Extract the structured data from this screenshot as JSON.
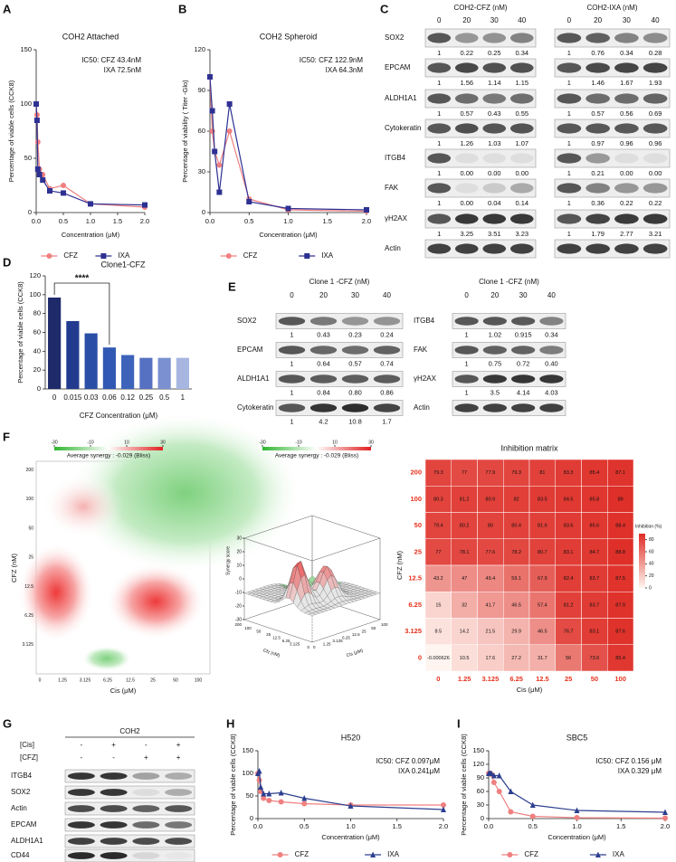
{
  "panels": [
    "A",
    "B",
    "C",
    "D",
    "E",
    "F",
    "G",
    "H",
    "I"
  ],
  "chart_data": [
    {
      "type": "line",
      "title": "COH2 Attached",
      "annotations": [
        "IC50: CFZ 43.4nM",
        "IXA 72.5nM"
      ],
      "x_label": "Concentration (μM)",
      "y_label": "Percentage of viable cells (CCK8)",
      "xlim": [
        0,
        2
      ],
      "xticks": [
        {
          "value": 0,
          "label": "0.0"
        },
        0.5,
        {
          "value": 1,
          "label": "1.0"
        },
        1.5,
        {
          "value": 2,
          "label": "2.0"
        }
      ],
      "ylim": [
        0,
        150
      ],
      "yticks": [
        0,
        50,
        100,
        150
      ],
      "legend": "bottom",
      "x": [
        0,
        0.015,
        0.03,
        0.06,
        0.12,
        0.25,
        0.5,
        1,
        2
      ],
      "series": [
        {
          "name": "CFZ",
          "color": "#f08080",
          "marker": "circle",
          "values": [
            100,
            90,
            65,
            40,
            35,
            22,
            25,
            8,
            5
          ]
        },
        {
          "name": "IXA",
          "color": "#2e3192",
          "marker": "square",
          "values": [
            100,
            85,
            40,
            35,
            30,
            20,
            18,
            8,
            7
          ]
        }
      ]
    },
    {
      "type": "line",
      "title": "COH2 Spheroid",
      "annotations": [
        "IC50: CFZ 122.9nM",
        "IXA  64.3nM"
      ],
      "x_label": "Concentration (μM)",
      "y_label": "Percentage of viability ( Titer -Glo)",
      "xlim": [
        0,
        2
      ],
      "xticks": [
        {
          "value": 0,
          "label": "0.0"
        },
        0.5,
        {
          "value": 1,
          "label": "1.0"
        },
        1.5,
        {
          "value": 2,
          "label": "2.0"
        }
      ],
      "ylim": [
        0,
        120
      ],
      "yticks": [
        0,
        30,
        60,
        90,
        120
      ],
      "legend": "bottom",
      "x": [
        0,
        0.03,
        0.06,
        0.12,
        0.25,
        0.5,
        1,
        2
      ],
      "series": [
        {
          "name": "CFZ",
          "color": "#f08080",
          "marker": "circle",
          "values": [
            100,
            60,
            45,
            35,
            60,
            10,
            2,
            1
          ]
        },
        {
          "name": "IXA",
          "color": "#2e3192",
          "marker": "square",
          "values": [
            100,
            75,
            45,
            15,
            80,
            8,
            3,
            2
          ]
        }
      ]
    },
    {
      "type": "bar",
      "title": "Clone1-CFZ",
      "annotation": "****",
      "x_label": "CFZ Concentration (μM)",
      "y_label": "Percentage of viable cells (CCK8)",
      "categories": [
        "0",
        "0.015",
        "0.03",
        "0.06",
        "0.12",
        "0.25",
        "0.5",
        "1"
      ],
      "values": [
        97,
        72,
        59,
        44,
        36,
        33,
        33,
        33
      ],
      "colors": [
        "#1f2a6b",
        "#223b8f",
        "#2a4ea6",
        "#3158b3",
        "#3d64ba",
        "#5670c2",
        "#7a90d0",
        "#a6b6e0"
      ],
      "ylim": [
        0,
        120
      ],
      "yticks": [
        0,
        20,
        40,
        60,
        80,
        100,
        120
      ]
    },
    {
      "type": "line",
      "title": "H520",
      "annotations": [
        "IC50: CFZ 0.097μM",
        "IXA 0.241μM"
      ],
      "x_label": "Concentration (μM)",
      "y_label": "Percentage of viable cells (CCK8)",
      "xlim": [
        0,
        2
      ],
      "xticks": [
        {
          "value": 0,
          "label": "0.0"
        },
        0.5,
        {
          "value": 1,
          "label": "1.0"
        },
        1.5,
        {
          "value": 2,
          "label": "2.0"
        }
      ],
      "ylim": [
        0,
        150
      ],
      "yticks": [
        0,
        50,
        100,
        150
      ],
      "legend": "bottom",
      "x": [
        0,
        0.015,
        0.03,
        0.06,
        0.12,
        0.25,
        0.5,
        1,
        2
      ],
      "series": [
        {
          "name": "CFZ",
          "color": "#f08080",
          "marker": "circle",
          "values": [
            100,
            85,
            60,
            45,
            40,
            37,
            33,
            30,
            30
          ]
        },
        {
          "name": "IXA",
          "color": "#2c3e8f",
          "marker": "triangle",
          "values": [
            100,
            105,
            70,
            55,
            55,
            57,
            45,
            28,
            20
          ]
        }
      ]
    },
    {
      "type": "line",
      "title": "SBC5",
      "annotations": [
        "IC50: CFZ 0.156 μM",
        "IXA 0.329 μM"
      ],
      "x_label": "Concentration (μM)",
      "y_label": "Percentage of viable cells (CCK8)",
      "xlim": [
        0,
        2
      ],
      "xticks": [
        {
          "value": 0,
          "label": "0.0"
        },
        0.5,
        {
          "value": 1,
          "label": "1.0"
        },
        1.5,
        {
          "value": 2,
          "label": "2.0"
        }
      ],
      "ylim": [
        0,
        150
      ],
      "yticks": [
        0,
        30,
        60,
        90,
        120,
        150
      ],
      "legend": "bottom",
      "x": [
        0,
        0.015,
        0.03,
        0.06,
        0.12,
        0.25,
        0.5,
        1,
        2
      ],
      "series": [
        {
          "name": "CFZ",
          "color": "#f08080",
          "marker": "circle",
          "values": [
            100,
            100,
            98,
            80,
            60,
            15,
            5,
            2,
            1
          ]
        },
        {
          "name": "IXA",
          "color": "#2c3e8f",
          "marker": "triangle",
          "values": [
            100,
            100,
            100,
            95,
            95,
            60,
            30,
            18,
            14
          ]
        }
      ]
    },
    {
      "type": "heatmap",
      "title": "Inhibition matrix",
      "x_label": "Cis (μM)",
      "y_label": "CFZ (nM)",
      "columns": [
        "0",
        "1.25",
        "3.125",
        "6.25",
        "12.5",
        "25",
        "50",
        "100"
      ],
      "rows": [
        "200",
        "100",
        "50",
        "25",
        "12.5",
        "6.25",
        "3.125",
        "0"
      ],
      "values": [
        [
          79.3,
          77,
          77.9,
          79.3,
          81,
          83.3,
          85.4,
          87.1
        ],
        [
          80.3,
          81.2,
          80.9,
          82,
          83.5,
          84.5,
          85.8,
          89
        ],
        [
          79.4,
          80.2,
          80,
          80.4,
          81.6,
          83.6,
          85.6,
          88.4
        ],
        [
          77,
          78.1,
          77.6,
          78.2,
          80.7,
          83.1,
          84.7,
          88.8
        ],
        [
          43.2,
          47,
          49.4,
          59.1,
          67.9,
          82.4,
          83.7,
          87.5
        ],
        [
          15,
          32,
          41.7,
          46.5,
          57.4,
          81.2,
          83.7,
          87.9
        ],
        [
          8.5,
          14.2,
          21.5,
          29.9,
          46.5,
          76.7,
          83.1,
          87.6
        ],
        [
          -0.000626,
          10.5,
          17.6,
          27.2,
          31.7,
          56,
          73.6,
          85.4
        ]
      ],
      "colorbar_label": "Inhibition (%)",
      "clim": [
        0,
        90
      ],
      "colorbar_ticks": [
        0,
        20,
        40,
        60,
        80
      ]
    }
  ],
  "synergy": {
    "map": {
      "title": "Average synergy : -0.029 (Bliss)",
      "colorbar_ticks": [
        -30,
        -10,
        10,
        30
      ],
      "x_label": "Cis (μM)",
      "y_label": "CFZ (nM)",
      "xticks": [
        "0",
        "1.25",
        "3.125",
        "6.25",
        "12.5",
        "25",
        "50",
        "100"
      ],
      "yticks": [
        "3.125",
        "6.25",
        "12.5",
        "25",
        "50",
        "100",
        "200"
      ]
    },
    "surface": {
      "title": "Average synergy : -0.029 (Bliss)",
      "colorbar_ticks": [
        -30,
        -10,
        10,
        30
      ],
      "z_label": "Synergy score",
      "zticks": [
        30,
        20,
        10,
        0,
        -10,
        -20,
        -30
      ],
      "y_label": "Cfz (nM)",
      "yticks": [
        "0",
        "3.125",
        "6.25",
        "12.5",
        "25",
        "50",
        "100",
        "200"
      ],
      "x_label": "Cis (μM)",
      "xticks": [
        "0",
        "1.25",
        "3.125",
        "6.25",
        "12.5",
        "25",
        "50",
        "100"
      ]
    }
  },
  "blots": {
    "C": {
      "row_labels": [
        "SOX2",
        "EPCAM",
        "ALDH1A1",
        "Cytokeratin",
        "ITGB4",
        "FAK",
        "γH2AX",
        "Actin"
      ],
      "groups": [
        {
          "title": "COH2-CFZ (nM)",
          "lanes": [
            "0",
            "20",
            "30",
            "40"
          ],
          "quant": [
            [
              "1",
              "0.22",
              "0.25",
              "0.34"
            ],
            [
              "1",
              "1.56",
              "1.14",
              "1.15"
            ],
            [
              "1",
              "0.57",
              "0.43",
              "0.55"
            ],
            [
              "1",
              "1.26",
              "1.03",
              "1.07"
            ],
            [
              "1",
              "0.00",
              "0.00",
              "0.00"
            ],
            [
              "1",
              "0.00",
              "0.04",
              "0.14"
            ],
            [
              "1",
              "3.25",
              "3.51",
              "3.23"
            ]
          ]
        },
        {
          "title": "COH2-IXA (nM)",
          "lanes": [
            "0",
            "20",
            "30",
            "40"
          ],
          "quant": [
            [
              "1",
              "0.76",
              "0.34",
              "0.28"
            ],
            [
              "1",
              "1.46",
              "1.67",
              "1.93"
            ],
            [
              "1",
              "0.57",
              "0.56",
              "0.69"
            ],
            [
              "1",
              "0.97",
              "0.96",
              "0.96"
            ],
            [
              "1",
              "0.21",
              "0.00",
              "0.00"
            ],
            [
              "1",
              "0.36",
              "0.22",
              "0.22"
            ],
            [
              "1",
              "1.79",
              "2.77",
              "3.21"
            ]
          ]
        }
      ]
    },
    "E": {
      "groups": [
        {
          "title": "Clone 1 -CFZ (nM)",
          "lanes": [
            "0",
            "20",
            "30",
            "40"
          ],
          "rows": [
            {
              "label": "SOX2",
              "quant": [
                "1",
                "0.43",
                "0.23",
                "0.24"
              ]
            },
            {
              "label": "EPCAM",
              "quant": [
                "1",
                "0.64",
                "0.57",
                "0.74"
              ]
            },
            {
              "label": "ALDH1A1",
              "quant": [
                "1",
                "0.84",
                "0.80",
                "0.86"
              ]
            },
            {
              "label": "Cytokeratin",
              "quant": [
                "1",
                "4.2",
                "10.8",
                "1.7"
              ]
            }
          ]
        },
        {
          "title": "Clone 1 -CFZ (nM)",
          "lanes": [
            "0",
            "20",
            "30",
            "40"
          ],
          "rows": [
            {
              "label": "ITGB4",
              "quant": [
                "1",
                "1.02",
                "0.915",
                "0.34"
              ]
            },
            {
              "label": "FAK",
              "quant": [
                "1",
                "0.75",
                "0.72",
                "0.40"
              ]
            },
            {
              "label": "γH2AX",
              "quant": [
                "1",
                "3.5",
                "4.14",
                "4.03"
              ]
            },
            {
              "label": "Actin"
            }
          ]
        }
      ]
    },
    "G": {
      "title": "COH2",
      "conditions": [
        {
          "label": "[Cis]",
          "signs": [
            "-",
            "+",
            "-",
            "+"
          ]
        },
        {
          "label": "[CFZ]",
          "signs": [
            "-",
            "-",
            "+",
            "+"
          ]
        }
      ],
      "rows": [
        "ITGB4",
        "SOX2",
        "Actin",
        "EPCAM",
        "ALDH1A1",
        "CD44"
      ]
    }
  }
}
